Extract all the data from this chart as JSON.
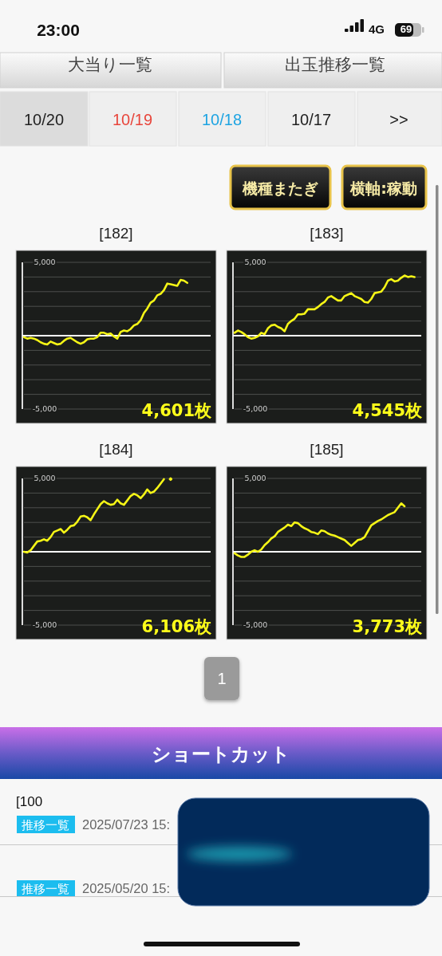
{
  "chart_data": [
    {
      "type": "other",
      "annotations": [
        "23:00",
        "4G",
        "69",
        "大当り一覧",
        "出玉推移一覧",
        "10/20",
        "10/19",
        "10/18",
        "10/17",
        ">>",
        "機種またぎ",
        "横軸:稼動"
      ]
    },
    {
      "type": "line",
      "title": "[182]",
      "categories": [
        null,
        null,
        null,
        null,
        null,
        null,
        null,
        null,
        null,
        null,
        null,
        null,
        null,
        null,
        null,
        null,
        null,
        null,
        null,
        null,
        null,
        null,
        null,
        null,
        null,
        null,
        null,
        null,
        null,
        null,
        null,
        null,
        null,
        null,
        null,
        null,
        null,
        null,
        null,
        null,
        null,
        null,
        null,
        null,
        null,
        null,
        null,
        null,
        null,
        null,
        null,
        null,
        null,
        null,
        null,
        null,
        null
      ],
      "series": [
        {
          "color": "#f5f516",
          "values": [
            -100,
            -200,
            -150,
            -200,
            -300,
            -450,
            -550,
            -600,
            -400,
            -500,
            -600,
            -550,
            -350,
            -200,
            -150,
            -300,
            -450,
            -550,
            -450,
            -250,
            -200,
            -200,
            -100,
            200,
            200,
            100,
            150,
            -50,
            -200,
            250,
            350,
            300,
            450,
            700,
            800,
            1050,
            1550,
            1850,
            2250,
            2400,
            2750,
            2850,
            3100,
            3550,
            3500,
            3450,
            3400,
            3800,
            3750,
            3600,
            null,
            null,
            null,
            null,
            null,
            null,
            null
          ]
        }
      ],
      "ylim": [
        -5000,
        5000
      ],
      "yticks": [
        {
          "value": 5000,
          "label": "5,000"
        },
        {
          "value": 4000,
          "label": null
        },
        {
          "value": 3000,
          "label": null
        },
        {
          "value": 2000,
          "label": null
        },
        {
          "value": 1000,
          "label": null
        },
        {
          "value": -1000,
          "label": null
        },
        {
          "value": -2000,
          "label": null
        },
        {
          "value": -3000,
          "label": null
        },
        {
          "value": -4000,
          "label": null
        },
        {
          "value": -5000,
          "label": "-5,000"
        }
      ],
      "grid": "y",
      "ref_lines": [
        {
          "axis": "y",
          "value": 0,
          "color": "#ffffff"
        }
      ],
      "annotations": [
        "4,601枚"
      ]
    },
    {
      "type": "line",
      "title": "[183]",
      "categories": [
        null,
        null,
        null,
        null,
        null,
        null,
        null,
        null,
        null,
        null,
        null,
        null,
        null,
        null,
        null,
        null,
        null,
        null,
        null,
        null,
        null,
        null,
        null,
        null,
        null,
        null,
        null,
        null,
        null,
        null,
        null,
        null,
        null,
        null,
        null,
        null,
        null,
        null,
        null,
        null,
        null,
        null,
        null,
        null,
        null,
        null,
        null,
        null,
        null,
        null,
        null,
        null,
        null,
        null,
        null,
        null,
        null
      ],
      "series": [
        {
          "color": "#f5f516",
          "values": [
            200,
            350,
            250,
            100,
            -100,
            -200,
            -150,
            -50,
            200,
            100,
            500,
            700,
            750,
            600,
            500,
            300,
            800,
            1000,
            1150,
            1450,
            1450,
            1500,
            1800,
            1800,
            1800,
            1950,
            2150,
            2300,
            2600,
            2700,
            2550,
            2400,
            2400,
            2700,
            2800,
            2900,
            2700,
            2600,
            2500,
            2300,
            2250,
            2500,
            2900,
            2950,
            3000,
            3300,
            3750,
            3850,
            3700,
            3750,
            3950,
            4100,
            4000,
            4050,
            4000,
            null,
            null
          ]
        }
      ],
      "ylim": [
        -5000,
        5000
      ],
      "yticks": [
        {
          "value": 5000,
          "label": "5,000"
        },
        {
          "value": 4000,
          "label": null
        },
        {
          "value": 3000,
          "label": null
        },
        {
          "value": 2000,
          "label": null
        },
        {
          "value": 1000,
          "label": null
        },
        {
          "value": -1000,
          "label": null
        },
        {
          "value": -2000,
          "label": null
        },
        {
          "value": -3000,
          "label": null
        },
        {
          "value": -4000,
          "label": null
        },
        {
          "value": -5000,
          "label": "-5,000"
        }
      ],
      "grid": "y",
      "ref_lines": [
        {
          "axis": "y",
          "value": 0,
          "color": "#ffffff"
        }
      ],
      "annotations": [
        "4,545枚"
      ]
    },
    {
      "type": "line",
      "title": "[184]",
      "categories": [
        null,
        null,
        null,
        null,
        null,
        null,
        null,
        null,
        null,
        null,
        null,
        null,
        null,
        null,
        null,
        null,
        null,
        null,
        null,
        null,
        null,
        null,
        null,
        null,
        null,
        null,
        null,
        null,
        null,
        null,
        null,
        null,
        null,
        null,
        null,
        null,
        null,
        null,
        null,
        null,
        null,
        null,
        null,
        null,
        null,
        null,
        null,
        null,
        null,
        null,
        null,
        null,
        null,
        null,
        null,
        null,
        null
      ],
      "series": [
        {
          "color": "#f5f516",
          "values": [
            0,
            -50,
            100,
            400,
            700,
            750,
            850,
            750,
            1000,
            1350,
            1450,
            1550,
            1300,
            1500,
            1750,
            1800,
            2050,
            2400,
            2450,
            2350,
            2150,
            2550,
            2900,
            3250,
            3450,
            3300,
            3200,
            3250,
            3550,
            3300,
            3200,
            3500,
            3800,
            3950,
            3850,
            3650,
            3900,
            4250,
            4000,
            4100,
            4350,
            4650,
            4950,
            null,
            4950,
            null,
            null,
            null,
            null,
            null,
            null,
            null,
            null,
            null,
            null,
            null,
            null
          ]
        }
      ],
      "ylim": [
        -5000,
        5000
      ],
      "yticks": [
        {
          "value": 5000,
          "label": "5,000"
        },
        {
          "value": 4000,
          "label": null
        },
        {
          "value": 3000,
          "label": null
        },
        {
          "value": 2000,
          "label": null
        },
        {
          "value": 1000,
          "label": null
        },
        {
          "value": -1000,
          "label": null
        },
        {
          "value": -2000,
          "label": null
        },
        {
          "value": -3000,
          "label": null
        },
        {
          "value": -4000,
          "label": null
        },
        {
          "value": -5000,
          "label": "-5,000"
        }
      ],
      "grid": "y",
      "ref_lines": [
        {
          "axis": "y",
          "value": 0,
          "color": "#ffffff"
        }
      ],
      "annotations": [
        "6,106枚"
      ]
    },
    {
      "type": "line",
      "title": "[185]",
      "categories": [
        null,
        null,
        null,
        null,
        null,
        null,
        null,
        null,
        null,
        null,
        null,
        null,
        null,
        null,
        null,
        null,
        null,
        null,
        null,
        null,
        null,
        null,
        null,
        null,
        null,
        null,
        null,
        null,
        null,
        null,
        null,
        null,
        null,
        null,
        null,
        null,
        null,
        null,
        null,
        null,
        null,
        null,
        null,
        null,
        null,
        null,
        null,
        null,
        null,
        null,
        null,
        null,
        null,
        null,
        null,
        null,
        null
      ],
      "series": [
        {
          "color": "#f5f516",
          "values": [
            -100,
            -250,
            -350,
            -350,
            -200,
            0,
            100,
            0,
            150,
            450,
            650,
            900,
            1050,
            1350,
            1500,
            1650,
            1850,
            1750,
            2000,
            1950,
            1750,
            1600,
            1500,
            1350,
            1300,
            1200,
            1450,
            1400,
            1250,
            1150,
            1100,
            1000,
            900,
            800,
            600,
            400,
            600,
            800,
            850,
            1000,
            1400,
            1800,
            1950,
            2100,
            2200,
            2350,
            2500,
            2600,
            2700,
            3000,
            3300,
            3100,
            null,
            null,
            null,
            null,
            null
          ]
        }
      ],
      "ylim": [
        -5000,
        5000
      ],
      "yticks": [
        {
          "value": 5000,
          "label": "5,000"
        },
        {
          "value": 4000,
          "label": null
        },
        {
          "value": 3000,
          "label": null
        },
        {
          "value": 2000,
          "label": null
        },
        {
          "value": 1000,
          "label": null
        },
        {
          "value": -1000,
          "label": null
        },
        {
          "value": -2000,
          "label": null
        },
        {
          "value": -3000,
          "label": null
        },
        {
          "value": -4000,
          "label": null
        },
        {
          "value": -5000,
          "label": "-5,000"
        }
      ],
      "grid": "y",
      "ref_lines": [
        {
          "axis": "y",
          "value": 0,
          "color": "#ffffff"
        }
      ],
      "annotations": [
        "3,773枚"
      ]
    },
    {
      "type": "other",
      "annotations": [
        "1",
        "ショートカット",
        "[100",
        "推移一覧",
        "2025/07/23 15:",
        "推移一覧",
        "2025/05/20 15:"
      ]
    }
  ]
}
